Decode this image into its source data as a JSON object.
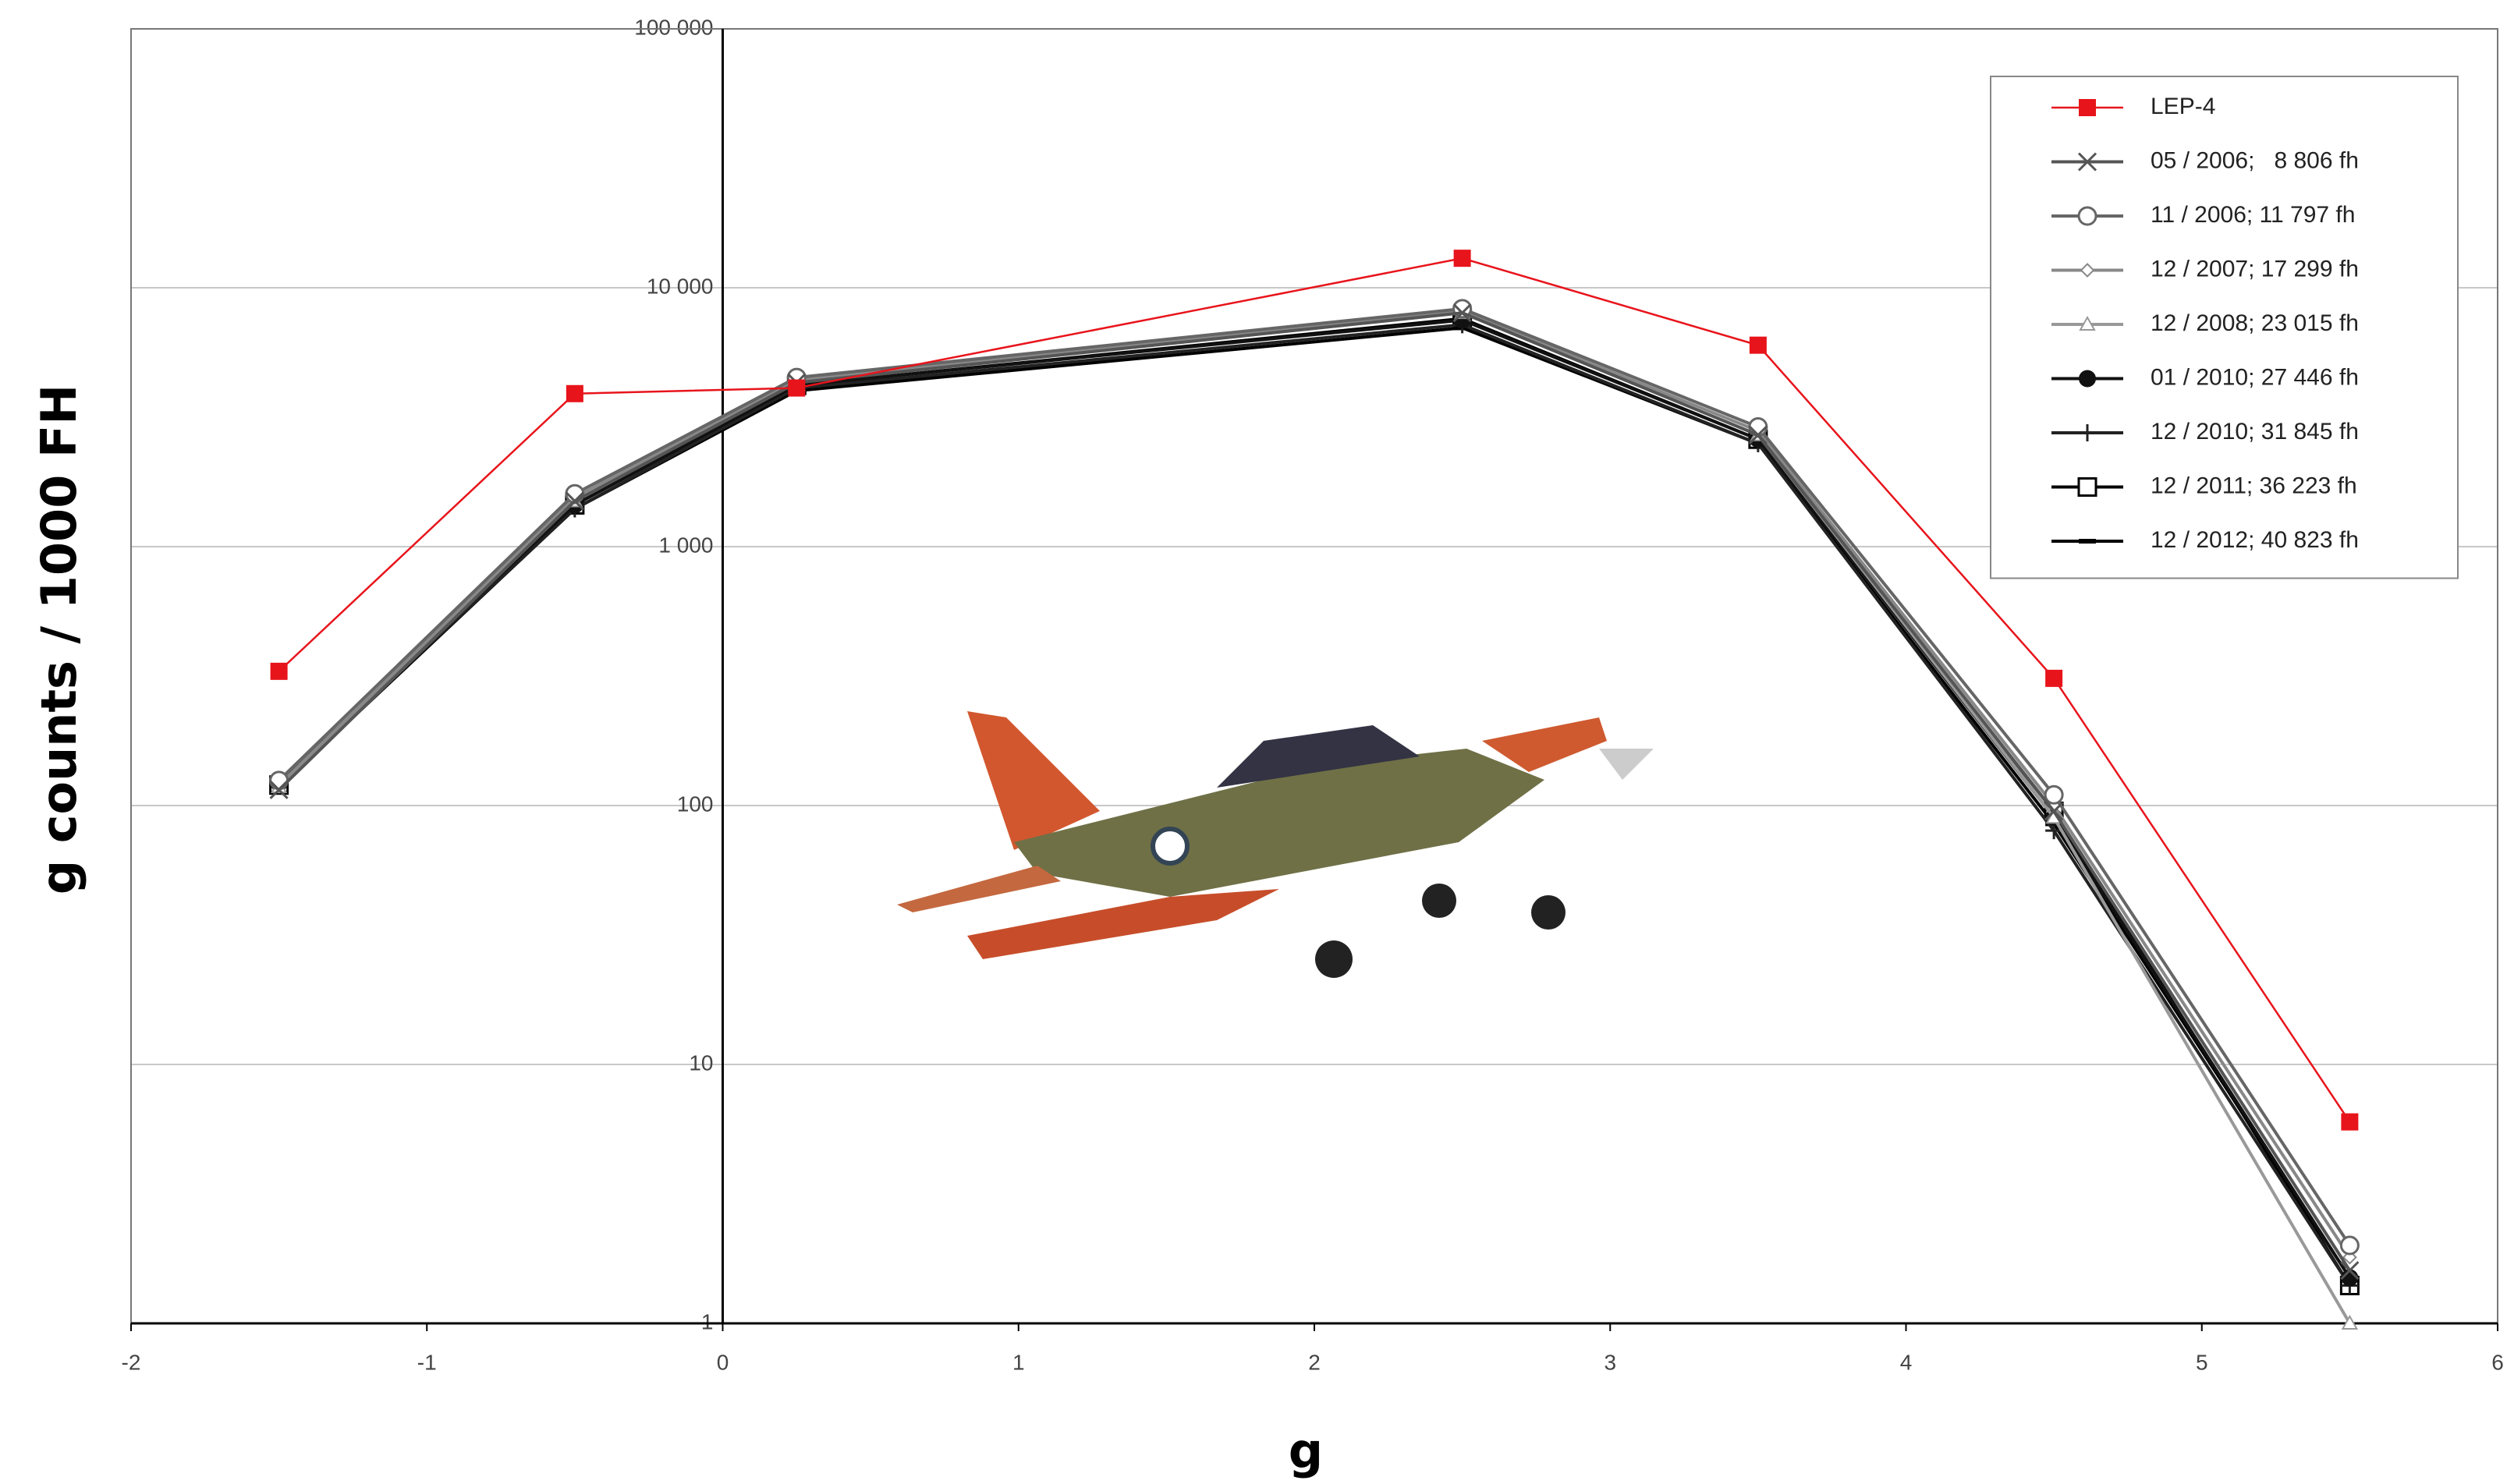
{
  "chart_data": {
    "type": "line",
    "x_label": "g",
    "y_label": "g counts / 1000 FH",
    "x": [
      -1.5,
      -0.5,
      0.25,
      2.5,
      3.5,
      4.5,
      5.5
    ],
    "xlim": [
      -2,
      6
    ],
    "xticks": [
      -2,
      -1,
      0,
      1,
      2,
      3,
      4,
      5,
      6
    ],
    "ylim": [
      1,
      100000
    ],
    "y_scale": "log",
    "yticks": [
      1,
      10,
      100,
      {
        "value": 1000,
        "label": "1 000"
      },
      {
        "value": 10000,
        "label": "10 000"
      },
      {
        "value": 100000,
        "label": "100 000"
      }
    ],
    "grid": true,
    "legend": "upper right",
    "series": [
      {
        "name": "LEP-4",
        "color": "#e8141b",
        "marker": "square-filled",
        "values": [
          330,
          3900,
          4100,
          13000,
          6000,
          310,
          6
        ]
      },
      {
        "name": "05 / 2006;   8 806 fh",
        "color": "#555555",
        "marker": "x",
        "values": [
          115,
          1500,
          4300,
          8000,
          2700,
          95,
          1.6
        ]
      },
      {
        "name": "11 / 2006; 11 797 fh",
        "color": "#666666",
        "marker": "circle",
        "values": [
          125,
          1600,
          4500,
          8300,
          2900,
          110,
          2.0
        ]
      },
      {
        "name": "12 / 2007; 17 299 fh",
        "color": "#888888",
        "marker": "diamond",
        "values": [
          120,
          1550,
          4400,
          8100,
          2800,
          100,
          1.8
        ]
      },
      {
        "name": "12 / 2008; 23 015 fh",
        "color": "#999999",
        "marker": "triangle",
        "values": [
          118,
          1500,
          4300,
          8000,
          2700,
          90,
          1.0
        ]
      },
      {
        "name": "01 / 2010; 27 446 fh",
        "color": "#111111",
        "marker": "circle-filled",
        "values": [
          122,
          1450,
          4200,
          7500,
          2600,
          90,
          1.5
        ]
      },
      {
        "name": "12 / 2010; 31 845 fh",
        "color": "#222222",
        "marker": "plus",
        "values": [
          120,
          1400,
          4100,
          7200,
          2500,
          80,
          1.4
        ]
      },
      {
        "name": "12 / 2011; 36 223 fh",
        "color": "#000000",
        "marker": "square",
        "values": [
          120,
          1450,
          4200,
          7600,
          2600,
          95,
          1.4
        ]
      },
      {
        "name": "12 / 2012; 40 823 fh",
        "color": "#000000",
        "marker": "dash",
        "values": [
          118,
          1400,
          4000,
          7000,
          2500,
          85,
          1.5
        ]
      }
    ]
  }
}
